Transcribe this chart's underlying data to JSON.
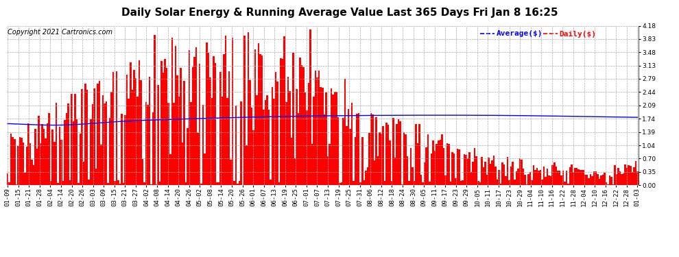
{
  "title": "Daily Solar Energy & Running Average Value Last 365 Days Fri Jan 8 16:25",
  "copyright": "Copyright 2021 Cartronics.com",
  "legend_avg": "Average($)",
  "legend_daily": "Daily($)",
  "bar_color": "#ff0000",
  "avg_color": "#0000ff",
  "background_color": "#ffffff",
  "grid_color": "#aaaaaa",
  "ylim": [
    0.0,
    4.18
  ],
  "yticks": [
    0.0,
    0.35,
    0.7,
    1.04,
    1.39,
    1.74,
    2.09,
    2.44,
    2.79,
    3.13,
    3.48,
    3.83,
    4.18
  ],
  "title_fontsize": 11,
  "copyright_fontsize": 7,
  "legend_fontsize": 8,
  "tick_fontsize": 6.5,
  "xtick_labels": [
    "01-09",
    "01-15",
    "01-21",
    "01-28",
    "02-04",
    "02-14",
    "02-20",
    "02-26",
    "03-03",
    "03-09",
    "03-15",
    "03-21",
    "03-27",
    "04-02",
    "04-08",
    "04-14",
    "04-20",
    "04-26",
    "05-02",
    "05-08",
    "05-14",
    "05-20",
    "05-26",
    "06-01",
    "06-07",
    "06-13",
    "06-19",
    "06-25",
    "07-01",
    "07-07",
    "07-13",
    "07-19",
    "07-25",
    "07-31",
    "08-06",
    "08-12",
    "08-18",
    "08-24",
    "08-30",
    "09-05",
    "09-11",
    "09-17",
    "09-23",
    "09-29",
    "10-05",
    "10-11",
    "10-17",
    "10-23",
    "10-29",
    "11-04",
    "11-10",
    "11-16",
    "11-22",
    "11-28",
    "12-04",
    "12-10",
    "12-16",
    "12-22",
    "12-28",
    "01-03"
  ]
}
